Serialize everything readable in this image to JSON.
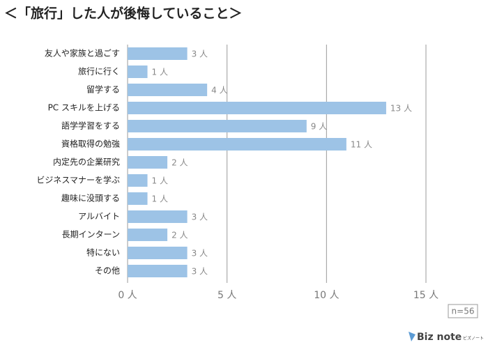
{
  "chart_data": {
    "type": "bar",
    "orientation": "horizontal",
    "title": "＜「旅行」した人が後悔していること＞",
    "categories": [
      "友人や家族と過ごす",
      "旅行に行く",
      "留学する",
      "PC スキルを上げる",
      "語学学習をする",
      "資格取得の勉強",
      "内定先の企業研究",
      "ビジネスマナーを学ぶ",
      "趣味に没頭する",
      "アルバイト",
      "長期インターン",
      "特にない",
      "その他"
    ],
    "values": [
      3,
      1,
      4,
      13,
      9,
      11,
      2,
      1,
      1,
      3,
      2,
      3,
      3
    ],
    "value_labels": [
      "3 人",
      "1 人",
      "4 人",
      "13 人",
      "9 人",
      "11 人",
      "2 人",
      "1 人",
      "1 人",
      "3 人",
      "2 人",
      "3 人",
      "3 人"
    ],
    "color": "#9dc3e6",
    "xlim": [
      0,
      15
    ],
    "xticks": [
      {
        "value": 0,
        "label": "0 人"
      },
      {
        "value": 5,
        "label": "5 人"
      },
      {
        "value": 10,
        "label": "10 人"
      },
      {
        "value": 15,
        "label": "15 人"
      }
    ],
    "grid": true,
    "note": "n=56",
    "logo": "Biz note",
    "logo_sub": "ビズノート"
  }
}
